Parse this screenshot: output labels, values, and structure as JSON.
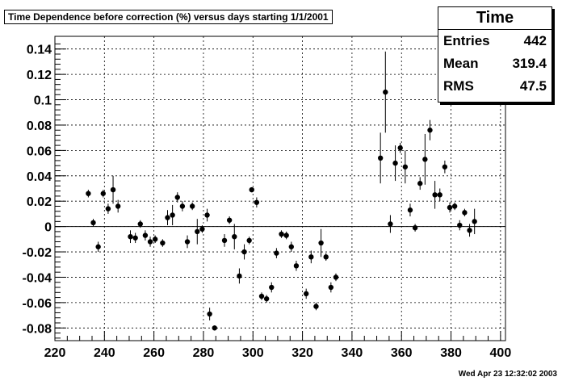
{
  "title": "Time Dependence before correction (%) versus days starting 1/1/2001",
  "stats": {
    "header": "Time",
    "rows": [
      {
        "label": "Entries",
        "value": "442"
      },
      {
        "label": "Mean",
        "value": "319.4"
      },
      {
        "label": "RMS",
        "value": "47.5"
      }
    ]
  },
  "timestamp": "Wed Apr 23 12:32:02 2003",
  "chart_data": {
    "type": "scatter",
    "title": "Time Dependence before correction (%) versus days starting 1/1/2001",
    "xlabel": "",
    "ylabel": "",
    "xlim": [
      220,
      402
    ],
    "ylim": [
      -0.09,
      0.15
    ],
    "x_ticks": [
      220,
      240,
      260,
      280,
      300,
      320,
      340,
      360,
      380,
      400
    ],
    "x_tick_labels": [
      "220",
      "240",
      "260",
      "280",
      "300",
      "320",
      "340",
      "360",
      "380",
      "400"
    ],
    "y_ticks": [
      -0.08,
      -0.06,
      -0.04,
      -0.02,
      0,
      0.02,
      0.04,
      0.06,
      0.08,
      0.1,
      0.12,
      0.14
    ],
    "y_tick_labels": [
      "-0.08",
      "-0.06",
      "-0.04",
      "-0.02",
      "0",
      "0.02",
      "0.04",
      "0.06",
      "0.08",
      "0.1",
      "0.12",
      "0.14"
    ],
    "grid": true,
    "points": [
      {
        "x": 233.5,
        "y": 0.026,
        "err": 0.003
      },
      {
        "x": 235.5,
        "y": 0.003,
        "err": 0.003
      },
      {
        "x": 237.5,
        "y": -0.016,
        "err": 0.004
      },
      {
        "x": 239.5,
        "y": 0.026,
        "err": 0.003
      },
      {
        "x": 241.5,
        "y": 0.014,
        "err": 0.004
      },
      {
        "x": 243.5,
        "y": 0.029,
        "err": 0.011
      },
      {
        "x": 245.5,
        "y": 0.016,
        "err": 0.005
      },
      {
        "x": 250.5,
        "y": -0.008,
        "err": 0.005
      },
      {
        "x": 252.5,
        "y": -0.009,
        "err": 0.004
      },
      {
        "x": 254.5,
        "y": 0.002,
        "err": 0.003
      },
      {
        "x": 256.5,
        "y": -0.007,
        "err": 0.004
      },
      {
        "x": 258.5,
        "y": -0.012,
        "err": 0.004
      },
      {
        "x": 260.5,
        "y": -0.01,
        "err": 0.003
      },
      {
        "x": 263.5,
        "y": -0.013,
        "err": 0.003
      },
      {
        "x": 265.5,
        "y": 0.007,
        "err": 0.006
      },
      {
        "x": 267.5,
        "y": 0.009,
        "err": 0.008
      },
      {
        "x": 269.5,
        "y": 0.023,
        "err": 0.004
      },
      {
        "x": 271.5,
        "y": 0.016,
        "err": 0.004
      },
      {
        "x": 273.5,
        "y": -0.012,
        "err": 0.005
      },
      {
        "x": 275.5,
        "y": 0.016,
        "err": 0.003
      },
      {
        "x": 277.5,
        "y": -0.004,
        "err": 0.01
      },
      {
        "x": 279.5,
        "y": -0.002,
        "err": 0.003
      },
      {
        "x": 281.5,
        "y": 0.009,
        "err": 0.005
      },
      {
        "x": 282.5,
        "y": -0.069,
        "err": 0.005
      },
      {
        "x": 284.5,
        "y": -0.08,
        "err": 0.002
      },
      {
        "x": 288.5,
        "y": -0.011,
        "err": 0.005
      },
      {
        "x": 290.5,
        "y": 0.005,
        "err": 0.003
      },
      {
        "x": 292.5,
        "y": -0.008,
        "err": 0.01
      },
      {
        "x": 294.5,
        "y": -0.039,
        "err": 0.006
      },
      {
        "x": 296.5,
        "y": -0.02,
        "err": 0.006
      },
      {
        "x": 298.5,
        "y": -0.011,
        "err": 0.003
      },
      {
        "x": 299.5,
        "y": 0.029,
        "err": 0.002
      },
      {
        "x": 301.5,
        "y": 0.019,
        "err": 0.004
      },
      {
        "x": 303.5,
        "y": -0.055,
        "err": 0.003
      },
      {
        "x": 305.5,
        "y": -0.057,
        "err": 0.003
      },
      {
        "x": 307.5,
        "y": -0.048,
        "err": 0.004
      },
      {
        "x": 309.5,
        "y": -0.021,
        "err": 0.004
      },
      {
        "x": 311.5,
        "y": -0.006,
        "err": 0.003
      },
      {
        "x": 313.5,
        "y": -0.007,
        "err": 0.003
      },
      {
        "x": 315.5,
        "y": -0.016,
        "err": 0.004
      },
      {
        "x": 317.5,
        "y": -0.031,
        "err": 0.004
      },
      {
        "x": 321.5,
        "y": -0.053,
        "err": 0.004
      },
      {
        "x": 323.5,
        "y": -0.024,
        "err": 0.005
      },
      {
        "x": 325.5,
        "y": -0.063,
        "err": 0.003
      },
      {
        "x": 327.5,
        "y": -0.013,
        "err": 0.011
      },
      {
        "x": 329.5,
        "y": -0.024,
        "err": 0.003
      },
      {
        "x": 331.5,
        "y": -0.048,
        "err": 0.004
      },
      {
        "x": 333.5,
        "y": -0.04,
        "err": 0.003
      },
      {
        "x": 351.5,
        "y": 0.054,
        "err": 0.02
      },
      {
        "x": 353.5,
        "y": 0.106,
        "err": 0.032
      },
      {
        "x": 355.5,
        "y": 0.002,
        "err": 0.007
      },
      {
        "x": 357.5,
        "y": 0.05,
        "err": 0.014
      },
      {
        "x": 359.5,
        "y": 0.062,
        "err": 0.004
      },
      {
        "x": 361.5,
        "y": 0.047,
        "err": 0.013
      },
      {
        "x": 363.5,
        "y": 0.013,
        "err": 0.005
      },
      {
        "x": 365.5,
        "y": -0.001,
        "err": 0.003
      },
      {
        "x": 367.5,
        "y": 0.034,
        "err": 0.005
      },
      {
        "x": 369.5,
        "y": 0.053,
        "err": 0.02
      },
      {
        "x": 371.5,
        "y": 0.076,
        "err": 0.008
      },
      {
        "x": 373.5,
        "y": 0.025,
        "err": 0.011
      },
      {
        "x": 375.5,
        "y": 0.025,
        "err": 0.005
      },
      {
        "x": 377.5,
        "y": 0.047,
        "err": 0.005
      },
      {
        "x": 379.5,
        "y": 0.015,
        "err": 0.004
      },
      {
        "x": 381.5,
        "y": 0.016,
        "err": 0.003
      },
      {
        "x": 383.5,
        "y": 0.001,
        "err": 0.004
      },
      {
        "x": 385.5,
        "y": 0.011,
        "err": 0.003
      },
      {
        "x": 387.5,
        "y": -0.003,
        "err": 0.005
      },
      {
        "x": 389.5,
        "y": 0.004,
        "err": 0.01
      }
    ]
  }
}
